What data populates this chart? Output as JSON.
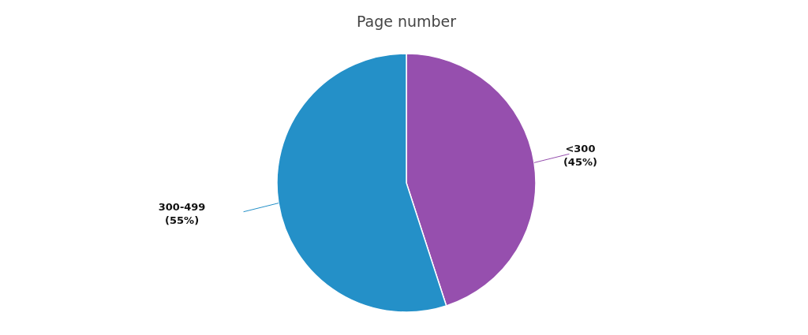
{
  "chart_data": {
    "type": "pie",
    "title": "Page number",
    "categories": [
      "<300",
      "300-499"
    ],
    "values": [
      45,
      55
    ],
    "colors": [
      "#964fae",
      "#2490c8"
    ],
    "value_labels": [
      "(45%)",
      "(55%)"
    ]
  }
}
